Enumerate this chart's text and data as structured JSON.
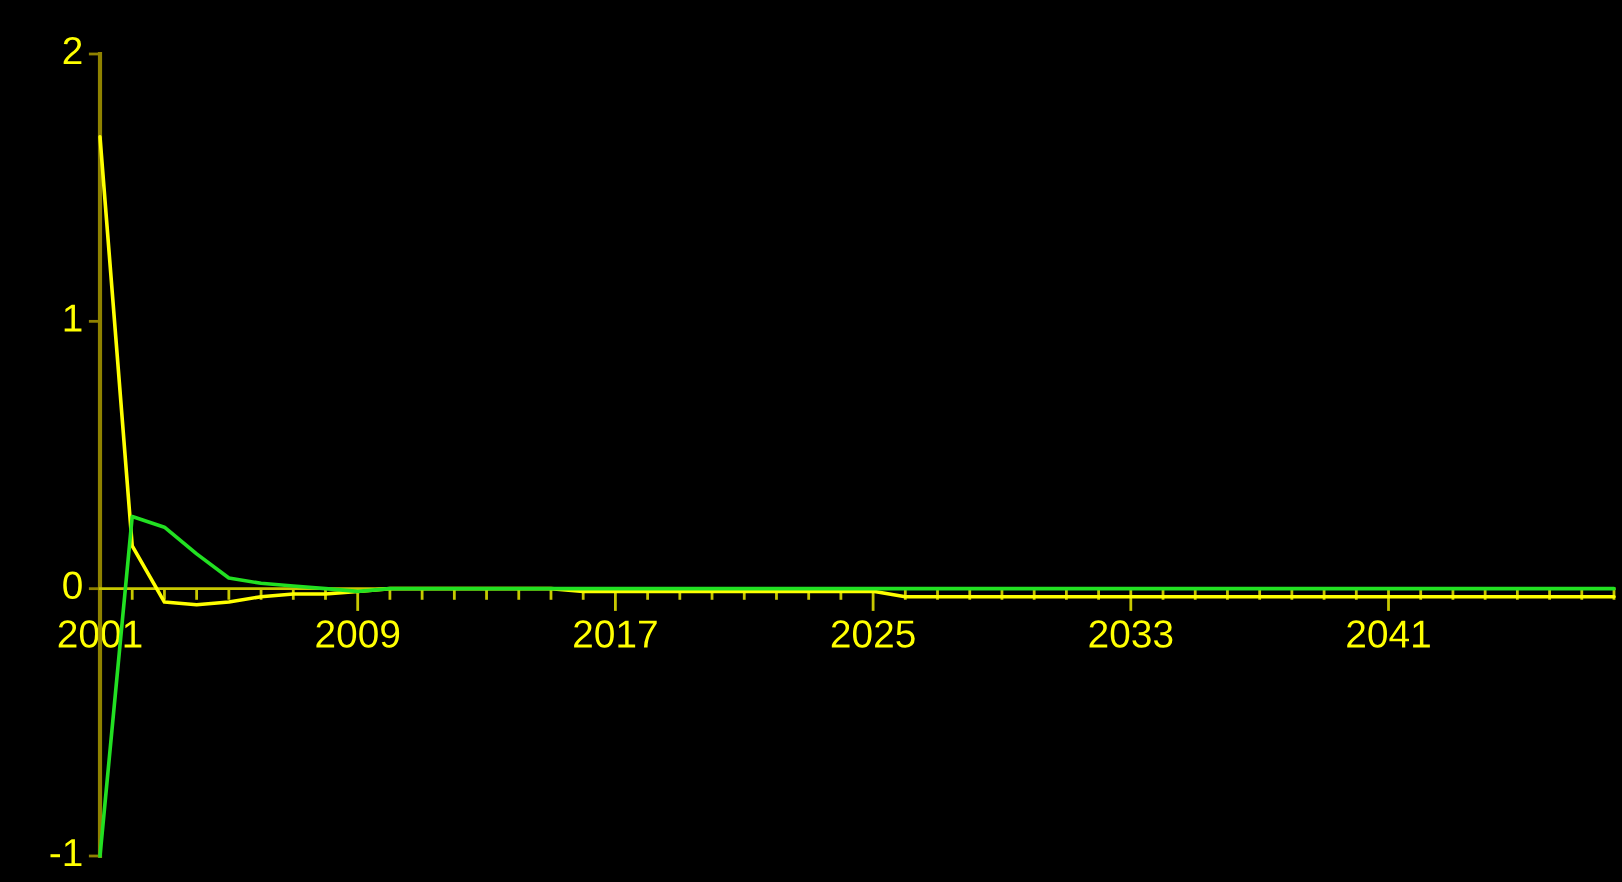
{
  "chart_data": {
    "type": "line",
    "x": [
      2001,
      2002,
      2003,
      2004,
      2005,
      2006,
      2007,
      2008,
      2009,
      2010,
      2011,
      2012,
      2013,
      2014,
      2015,
      2016,
      2017,
      2018,
      2019,
      2020,
      2021,
      2022,
      2023,
      2024,
      2025,
      2026,
      2027,
      2028,
      2029,
      2030,
      2031,
      2032,
      2033,
      2034,
      2035,
      2036,
      2037,
      2038,
      2039,
      2040,
      2041,
      2042,
      2043,
      2044,
      2045,
      2046,
      2047,
      2048
    ],
    "series": [
      {
        "color": "#ffff00",
        "values": [
          1.69,
          0.16,
          -0.05,
          -0.06,
          -0.05,
          -0.03,
          -0.02,
          -0.02,
          -0.01,
          0,
          0,
          0,
          0,
          0,
          0,
          -0.01,
          -0.01,
          -0.01,
          -0.01,
          -0.01,
          -0.01,
          -0.01,
          -0.01,
          -0.01,
          -0.01,
          -0.03,
          -0.03,
          -0.03,
          -0.03,
          -0.03,
          -0.03,
          -0.03,
          -0.03,
          -0.03,
          -0.03,
          -0.03,
          -0.03,
          -0.03,
          -0.03,
          -0.03,
          -0.03,
          -0.03,
          -0.03,
          -0.03,
          -0.03,
          -0.03,
          -0.03,
          -0.03
        ]
      },
      {
        "color": "#22e022",
        "values": [
          -1.0,
          0.27,
          0.23,
          0.13,
          0.04,
          0.02,
          0.01,
          0,
          -0.01,
          0,
          0,
          0,
          0,
          0,
          0,
          0,
          0,
          0,
          0,
          0,
          0,
          0,
          0,
          0,
          0,
          0,
          0,
          0,
          0,
          0,
          0,
          0,
          0,
          0,
          0,
          0,
          0,
          0,
          0,
          0,
          0,
          0,
          0,
          0,
          0,
          0,
          0,
          0
        ]
      }
    ],
    "xlim": [
      2001,
      2048
    ],
    "ylim": [
      -1,
      2
    ],
    "yticks": [
      2,
      1,
      0,
      -1
    ],
    "xticks": [
      2001,
      {
        "value": 2002,
        "label": null
      },
      {
        "value": 2003,
        "label": null
      },
      {
        "value": 2004,
        "label": null
      },
      {
        "value": 2005,
        "label": null
      },
      {
        "value": 2006,
        "label": null
      },
      {
        "value": 2007,
        "label": null
      },
      {
        "value": 2008,
        "label": null
      },
      2009,
      {
        "value": 2010,
        "label": null
      },
      {
        "value": 2011,
        "label": null
      },
      {
        "value": 2012,
        "label": null
      },
      {
        "value": 2013,
        "label": null
      },
      {
        "value": 2014,
        "label": null
      },
      {
        "value": 2015,
        "label": null
      },
      {
        "value": 2016,
        "label": null
      },
      2017,
      {
        "value": 2018,
        "label": null
      },
      {
        "value": 2019,
        "label": null
      },
      {
        "value": 2020,
        "label": null
      },
      {
        "value": 2021,
        "label": null
      },
      {
        "value": 2022,
        "label": null
      },
      {
        "value": 2023,
        "label": null
      },
      {
        "value": 2024,
        "label": null
      },
      2025,
      {
        "value": 2026,
        "label": null
      },
      {
        "value": 2027,
        "label": null
      },
      {
        "value": 2028,
        "label": null
      },
      {
        "value": 2029,
        "label": null
      },
      {
        "value": 2030,
        "label": null
      },
      {
        "value": 2031,
        "label": null
      },
      {
        "value": 2032,
        "label": null
      },
      2033,
      {
        "value": 2034,
        "label": null
      },
      {
        "value": 2035,
        "label": null
      },
      {
        "value": 2036,
        "label": null
      },
      {
        "value": 2037,
        "label": null
      },
      {
        "value": 2038,
        "label": null
      },
      {
        "value": 2039,
        "label": null
      },
      {
        "value": 2040,
        "label": null
      },
      2041,
      {
        "value": 2042,
        "label": null
      },
      {
        "value": 2043,
        "label": null
      },
      {
        "value": 2044,
        "label": null
      },
      {
        "value": 2045,
        "label": null
      },
      {
        "value": 2046,
        "label": null
      },
      {
        "value": 2047,
        "label": null
      },
      {
        "value": 2048,
        "label": null
      }
    ]
  }
}
